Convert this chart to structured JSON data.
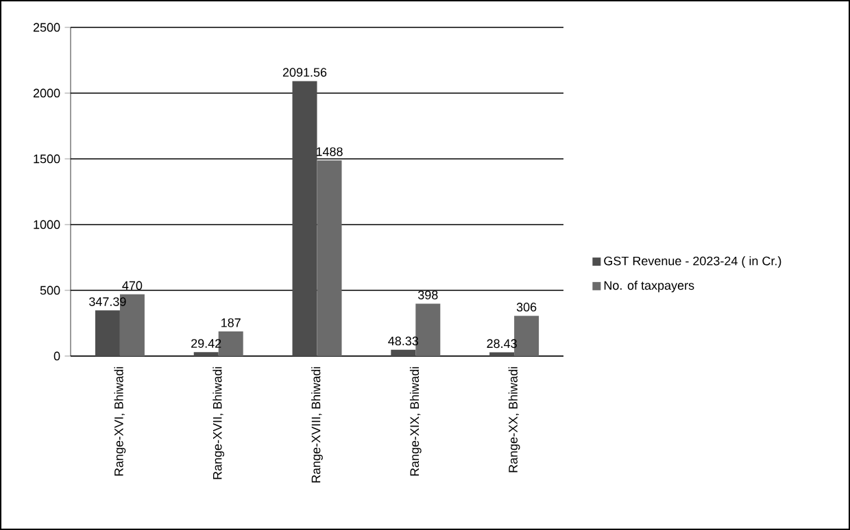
{
  "chart_data": {
    "type": "bar",
    "categories": [
      "Range-XVI, Bhiwadi",
      "Range-XVII, Bhiwadi",
      "Range-XVIII, Bhiwadi",
      "Range-XIX, Bhiwadi",
      "Range-XX, Bhiwadi"
    ],
    "series": [
      {
        "name": "GST Revenue - 2023-24 ( in Cr.)",
        "color": "#4d4d4d",
        "values": [
          347.39,
          29.42,
          2091.56,
          48.33,
          28.43
        ]
      },
      {
        "name": "No. of taxpayers",
        "color": "#6b6b6b",
        "values": [
          470,
          187,
          1488,
          398,
          306
        ]
      }
    ],
    "ylim": [
      0,
      2500
    ],
    "yticks": [
      0,
      500,
      1000,
      1500,
      2000,
      2500
    ],
    "grid": "y",
    "legend": "right",
    "data_labels": true
  }
}
